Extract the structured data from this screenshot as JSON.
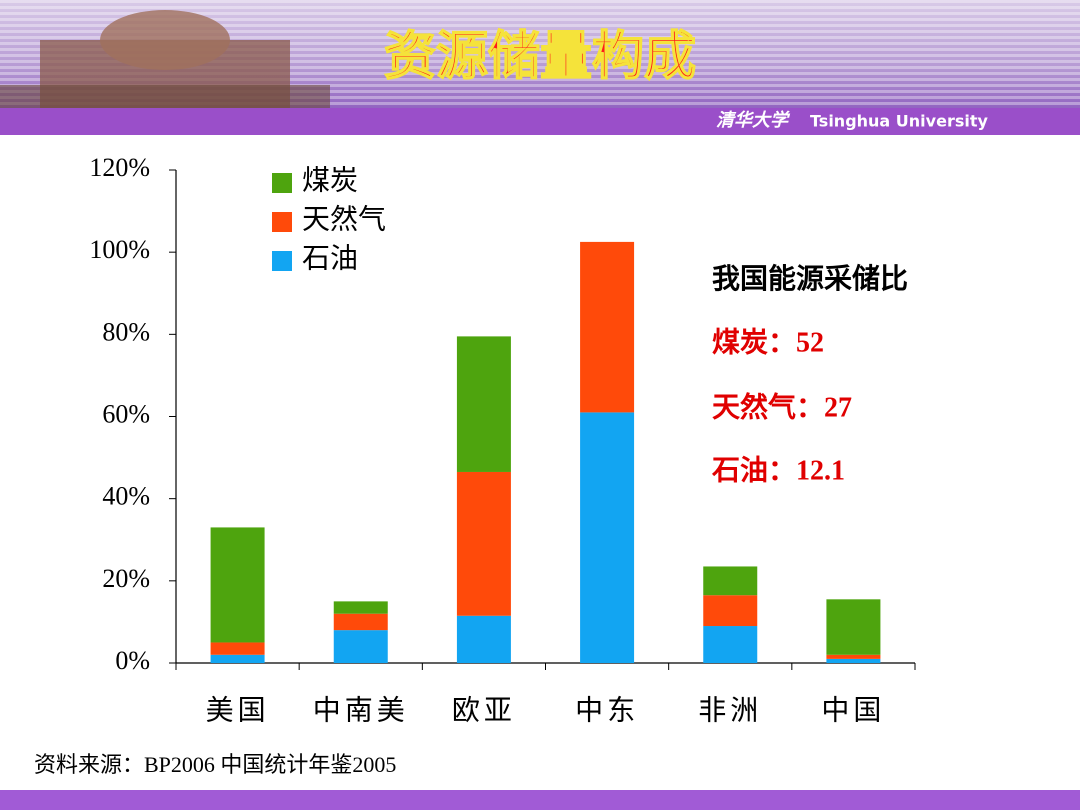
{
  "header": {
    "title": "资源储量构成",
    "logo": "清华大学",
    "university": "Tsinghua University"
  },
  "chart_data": {
    "type": "stacked_bar",
    "categories": [
      "美国",
      "中南美",
      "欧亚",
      "中东",
      "非洲",
      "中国"
    ],
    "series": [
      {
        "name": "煤炭",
        "color": "#4ea40e",
        "values": [
          28,
          3,
          33,
          0,
          7,
          13.5
        ]
      },
      {
        "name": "天然气",
        "color": "#ff4a0a",
        "values": [
          3,
          4,
          35,
          41.5,
          7.5,
          1
        ]
      },
      {
        "name": "石油",
        "color": "#12a5f2",
        "values": [
          2,
          8,
          11.5,
          61,
          9,
          1
        ]
      }
    ],
    "ylim": [
      0,
      120
    ],
    "yticks": [
      {
        "value": 0,
        "label": "0%"
      },
      {
        "value": 20,
        "label": "20%"
      },
      {
        "value": 40,
        "label": "40%"
      },
      {
        "value": 60,
        "label": "60%"
      },
      {
        "value": 80,
        "label": "80%"
      },
      {
        "value": 100,
        "label": "100%"
      },
      {
        "value": 120,
        "label": "120%"
      }
    ],
    "legend": "top-left"
  },
  "note": {
    "title": "我国能源采储比",
    "lines": [
      "煤炭：52",
      "天然气：27",
      "石油：12.1"
    ]
  },
  "source": "资料来源：BP2006 中国统计年鉴2005"
}
